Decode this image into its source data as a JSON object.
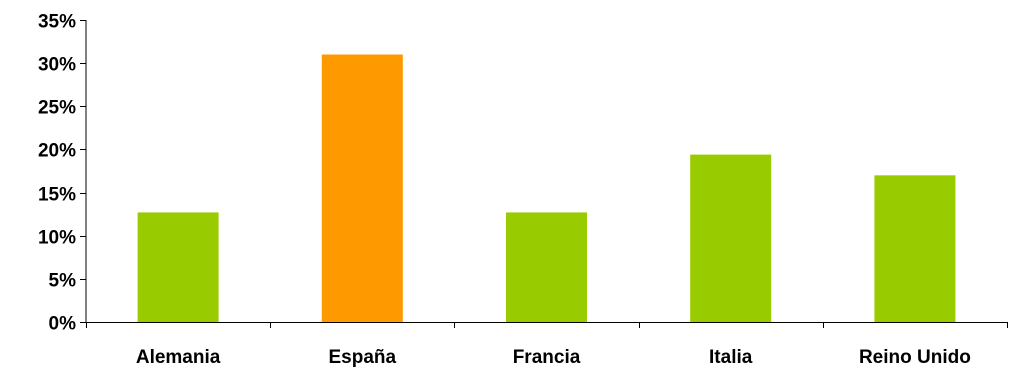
{
  "chart_data": {
    "type": "bar",
    "categories": [
      "Alemania",
      "España",
      "Francia",
      "Italia",
      "Reino Unido"
    ],
    "values": [
      12.7,
      31.0,
      12.7,
      19.4,
      17.0
    ],
    "bar_colors": [
      "#99CC00",
      "#FF9900",
      "#99CC00",
      "#99CC00",
      "#99CC00"
    ],
    "ylim": [
      0,
      35
    ],
    "y_ticks": [
      0,
      5,
      10,
      15,
      20,
      25,
      30,
      35
    ],
    "y_tick_labels": [
      "0%",
      "5%",
      "10%",
      "15%",
      "20%",
      "25%",
      "30%",
      "35%"
    ],
    "grid": false,
    "legend": "none",
    "title": "",
    "xlabel": "",
    "ylabel": ""
  }
}
